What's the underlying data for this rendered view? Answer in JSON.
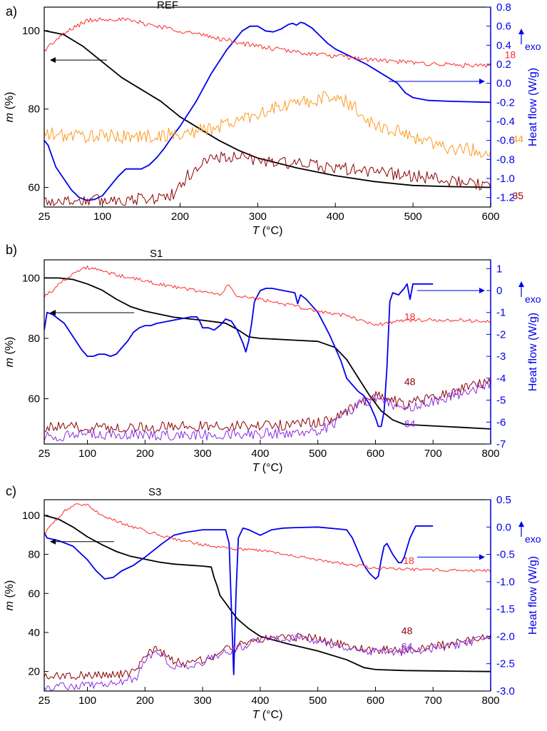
{
  "chart_data": [
    {
      "type": "line",
      "panel_letter": "a)",
      "title": "REF",
      "xlabel_var": "T",
      "xlabel_unit": " (°C)",
      "ylabel_left_var": "m",
      "ylabel_left_unit": " (%)",
      "ylabel_right": "Heat flow (W/g)",
      "exo_label": "exo",
      "xlim": [
        25,
        600
      ],
      "xticks": [
        25,
        100,
        200,
        300,
        400,
        500,
        600
      ],
      "ylim_left": [
        55,
        106
      ],
      "yticks_left": [
        60,
        80,
        100
      ],
      "ylim_right": [
        -1.3,
        0.8
      ],
      "yticks_right": [
        "-1.2",
        "-1.0",
        "-0.8",
        "-0.6",
        "-0.4",
        "-0.2",
        "0.0",
        "0.2",
        "0.4",
        "0.6",
        "0.8"
      ],
      "series": [
        {
          "name": "",
          "axis": "left",
          "color": "#000000",
          "x": [
            25,
            50,
            75,
            100,
            125,
            150,
            175,
            200,
            225,
            250,
            275,
            300,
            350,
            400,
            450,
            500,
            550,
            600
          ],
          "y": [
            100,
            99,
            96,
            92,
            88,
            85,
            82,
            78,
            75,
            72,
            69.5,
            67.5,
            65,
            63,
            61.5,
            60.5,
            60.2,
            60
          ]
        },
        {
          "name": "",
          "axis": "right",
          "color": "#0000ee",
          "x": [
            25,
            30,
            40,
            50,
            60,
            70,
            80,
            90,
            100,
            110,
            120,
            130,
            140,
            150,
            160,
            170,
            180,
            190,
            200,
            220,
            240,
            260,
            280,
            290,
            300,
            310,
            320,
            330,
            340,
            345,
            350,
            355,
            360,
            370,
            380,
            390,
            400,
            420,
            440,
            460,
            480,
            490,
            500,
            520,
            550,
            600
          ],
          "y": [
            -0.6,
            -0.65,
            -0.88,
            -1.0,
            -1.12,
            -1.2,
            -1.23,
            -1.22,
            -1.18,
            -1.08,
            -0.98,
            -0.9,
            -0.9,
            -0.9,
            -0.86,
            -0.78,
            -0.68,
            -0.56,
            -0.45,
            -0.2,
            0.1,
            0.35,
            0.55,
            0.6,
            0.6,
            0.55,
            0.54,
            0.57,
            0.62,
            0.63,
            0.61,
            0.64,
            0.63,
            0.58,
            0.5,
            0.42,
            0.36,
            0.28,
            0.2,
            0.1,
            0.0,
            -0.1,
            -0.15,
            -0.18,
            -0.19,
            -0.2
          ]
        },
        {
          "name": "18",
          "axis": "left",
          "color": "#ff2a2a",
          "noise": 0.6,
          "x": [
            25,
            40,
            60,
            80,
            100,
            120,
            150,
            200,
            250,
            300,
            350,
            400,
            450,
            500,
            550,
            600
          ],
          "y": [
            95,
            97.5,
            100.5,
            102.5,
            103,
            103,
            102,
            100,
            98,
            96,
            94.5,
            93.5,
            92.5,
            91.8,
            91.3,
            90.8
          ]
        },
        {
          "name": "44",
          "axis": "left",
          "color": "#ff9922",
          "noise": 1.8,
          "x": [
            25,
            100,
            150,
            200,
            250,
            300,
            350,
            380,
            400,
            420,
            450,
            500,
            550,
            600
          ],
          "y": [
            73.5,
            73,
            73,
            73.5,
            75.5,
            79,
            81.5,
            82.5,
            83.5,
            81,
            76,
            73,
            70,
            69
          ]
        },
        {
          "name": "35",
          "axis": "left",
          "color": "#8b0000",
          "noise": 1.6,
          "x": [
            25,
            100,
            150,
            180,
            195,
            210,
            230,
            250,
            280,
            300,
            350,
            400,
            450,
            500,
            550,
            600
          ],
          "y": [
            56.5,
            56.8,
            57,
            57.5,
            58.5,
            63,
            66.5,
            67.8,
            67.5,
            67,
            66,
            65,
            64,
            63,
            61.5,
            60.5
          ]
        }
      ],
      "annotations": {
        "label_18": "18",
        "label_44": "44",
        "label_35": "35"
      }
    },
    {
      "type": "line",
      "panel_letter": "b)",
      "title": "S1",
      "xlabel_var": "T",
      "xlabel_unit": " (°C)",
      "ylabel_left_var": "m",
      "ylabel_left_unit": " (%)",
      "ylabel_right": "Heat flow (W/g)",
      "exo_label": "exo",
      "xlim": [
        25,
        800
      ],
      "xticks": [
        25,
        100,
        200,
        300,
        400,
        500,
        600,
        700,
        800
      ],
      "ylim_left": [
        45,
        106
      ],
      "yticks_left": [
        60,
        80,
        100
      ],
      "ylim_right": [
        -7,
        1.4
      ],
      "yticks_right": [
        "-7",
        "-6",
        "-5",
        "-4",
        "-3",
        "-2",
        "-1",
        "0",
        "1"
      ],
      "series": [
        {
          "name": "",
          "axis": "left",
          "color": "#000000",
          "x": [
            25,
            50,
            75,
            100,
            125,
            150,
            175,
            200,
            250,
            300,
            340,
            360,
            380,
            400,
            450,
            500,
            530,
            550,
            570,
            590,
            610,
            630,
            650,
            700,
            750,
            800
          ],
          "y": [
            100,
            100,
            99.5,
            98,
            96,
            93,
            90.5,
            89,
            87,
            86,
            85,
            83,
            80.5,
            80,
            79.5,
            79,
            77,
            73,
            67,
            61,
            56,
            53,
            51.5,
            51,
            50.5,
            50
          ]
        },
        {
          "name": "",
          "axis": "right",
          "color": "#0000ee",
          "x": [
            25,
            30,
            40,
            50,
            60,
            70,
            80,
            90,
            100,
            110,
            120,
            130,
            140,
            150,
            160,
            170,
            180,
            190,
            200,
            210,
            220,
            240,
            260,
            280,
            290,
            295,
            300,
            310,
            320,
            330,
            340,
            350,
            360,
            370,
            375,
            380,
            385,
            390,
            400,
            410,
            420,
            440,
            460,
            465,
            470,
            475,
            480,
            500,
            520,
            540,
            550,
            560,
            570,
            580,
            590,
            600,
            605,
            610,
            615,
            620,
            625,
            630,
            640,
            650,
            655,
            660,
            665,
            700
          ],
          "y": [
            -1.8,
            -1.0,
            -1.1,
            -1.3,
            -1.5,
            -1.9,
            -2.3,
            -2.7,
            -3.0,
            -3.0,
            -2.9,
            -2.9,
            -3.0,
            -2.9,
            -2.6,
            -2.3,
            -1.9,
            -1.7,
            -1.6,
            -1.6,
            -1.5,
            -1.4,
            -1.3,
            -1.2,
            -1.2,
            -1.4,
            -1.7,
            -1.7,
            -1.8,
            -1.6,
            -1.3,
            -1.4,
            -1.8,
            -2.4,
            -2.8,
            -2.3,
            -1.5,
            -0.5,
            0.0,
            0.1,
            0.1,
            0.0,
            -0.1,
            -0.6,
            -0.2,
            -0.3,
            -0.4,
            -1.0,
            -2.0,
            -3.2,
            -4.0,
            -4.3,
            -4.6,
            -4.8,
            -5.2,
            -5.8,
            -6.2,
            -6.2,
            -5.5,
            -3.5,
            -0.5,
            -0.1,
            -0.2,
            0.1,
            0.3,
            -0.4,
            0.3,
            0.3
          ]
        },
        {
          "name": "18",
          "axis": "left",
          "color": "#ff2a2a",
          "noise": 0.6,
          "x": [
            25,
            40,
            60,
            80,
            100,
            120,
            150,
            200,
            250,
            300,
            330,
            345,
            360,
            380,
            400,
            450,
            500,
            550,
            600,
            620,
            650,
            700,
            750,
            800
          ],
          "y": [
            94,
            96,
            99.5,
            102,
            103.5,
            102.5,
            101,
            99,
            97,
            95.5,
            94.5,
            97.5,
            94,
            93.5,
            93,
            91,
            89,
            87.5,
            84.5,
            85,
            86,
            86,
            86,
            85.5
          ]
        },
        {
          "name": "48",
          "axis": "left",
          "color": "#8b0000",
          "noise": 1.8,
          "x": [
            25,
            100,
            200,
            300,
            400,
            450,
            500,
            520,
            550,
            580,
            600,
            620,
            650,
            700,
            750,
            800
          ],
          "y": [
            50.5,
            50.5,
            50.5,
            51,
            51,
            51.5,
            52,
            53,
            56,
            59,
            61,
            60,
            58,
            60.5,
            63,
            66
          ]
        },
        {
          "name": "64",
          "axis": "left",
          "color": "#8b2be2",
          "noise": 1.8,
          "x": [
            25,
            100,
            200,
            300,
            400,
            450,
            500,
            520,
            550,
            580,
            600,
            620,
            650,
            700,
            750,
            800
          ],
          "y": [
            47.5,
            48,
            48,
            48,
            48.5,
            48.5,
            49.5,
            51,
            55,
            59,
            60,
            59,
            56.5,
            59,
            62,
            65
          ]
        }
      ],
      "annotations": {
        "label_18": "18",
        "label_48": "48",
        "label_64": "64"
      }
    },
    {
      "type": "line",
      "panel_letter": "c)",
      "title": "S3",
      "xlabel_var": "T",
      "xlabel_unit": " (°C)",
      "ylabel_left_var": "m",
      "ylabel_left_unit": " (%)",
      "ylabel_right": "Heat flow (W/g)",
      "exo_label": "exo",
      "xlim": [
        25,
        800
      ],
      "xticks": [
        25,
        100,
        200,
        300,
        400,
        500,
        600,
        700,
        800
      ],
      "ylim_left": [
        10,
        108
      ],
      "yticks_left": [
        20,
        40,
        60,
        80,
        100
      ],
      "ylim_right": [
        -3.0,
        0.5
      ],
      "yticks_right": [
        "-3.0",
        "-2.5",
        "-2.0",
        "-1.5",
        "-1.0",
        "-0.5",
        "0.0",
        "0.5"
      ],
      "series": [
        {
          "name": "",
          "axis": "left",
          "color": "#000000",
          "x": [
            25,
            50,
            75,
            100,
            125,
            150,
            175,
            200,
            225,
            250,
            300,
            315,
            320,
            325,
            330,
            340,
            350,
            360,
            380,
            400,
            450,
            500,
            550,
            580,
            600,
            650,
            700,
            800
          ],
          "y": [
            100,
            98,
            94,
            89,
            85,
            81.5,
            79,
            77.5,
            76,
            75,
            74,
            73.5,
            68,
            64,
            59,
            55,
            51,
            47,
            42,
            38,
            34,
            30.5,
            26,
            22,
            21,
            20.5,
            20.3,
            20
          ]
        },
        {
          "name": "",
          "axis": "right",
          "color": "#0000ee",
          "x": [
            25,
            30,
            50,
            75,
            100,
            115,
            130,
            145,
            160,
            180,
            200,
            230,
            250,
            270,
            300,
            320,
            340,
            346,
            350,
            354,
            358,
            362,
            370,
            380,
            390,
            400,
            410,
            420,
            440,
            460,
            500,
            550,
            560,
            570,
            580,
            590,
            600,
            605,
            610,
            615,
            620,
            630,
            640,
            645,
            650,
            660,
            670,
            700
          ],
          "y": [
            -0.1,
            -0.2,
            -0.25,
            -0.35,
            -0.6,
            -0.8,
            -0.95,
            -0.92,
            -0.8,
            -0.7,
            -0.55,
            -0.3,
            -0.15,
            -0.1,
            -0.05,
            -0.05,
            -0.05,
            -0.3,
            -1.5,
            -2.7,
            -1.2,
            -0.2,
            -0.02,
            -0.05,
            -0.1,
            -0.15,
            -0.1,
            -0.05,
            -0.02,
            -0.01,
            0.0,
            -0.05,
            -0.2,
            -0.45,
            -0.7,
            -0.85,
            -0.95,
            -0.9,
            -0.6,
            -0.35,
            -0.3,
            -0.5,
            -0.65,
            -0.65,
            -0.55,
            -0.2,
            0.02,
            0.02
          ]
        },
        {
          "name": "18",
          "axis": "left",
          "color": "#ff2a2a",
          "noise": 0.8,
          "x": [
            25,
            40,
            60,
            80,
            100,
            120,
            150,
            200,
            250,
            300,
            350,
            400,
            450,
            500,
            550,
            600,
            650,
            700,
            750,
            800
          ],
          "y": [
            90,
            96,
            102,
            106,
            105,
            101,
            97,
            92,
            88,
            85,
            83,
            82,
            80,
            77,
            75,
            73,
            72.5,
            72,
            72,
            71.5
          ]
        },
        {
          "name": "48",
          "axis": "left",
          "color": "#8b0000",
          "noise": 2.2,
          "x": [
            25,
            100,
            160,
            185,
            200,
            220,
            240,
            250,
            270,
            300,
            330,
            360,
            400,
            450,
            500,
            540,
            600,
            650,
            700,
            750,
            800
          ],
          "y": [
            17.5,
            18,
            18.5,
            20,
            28,
            32,
            27,
            25,
            24,
            26,
            30,
            33,
            37,
            38,
            37,
            34,
            31,
            31,
            33,
            35,
            38
          ]
        },
        {
          "name": "64",
          "axis": "left",
          "color": "#8b2be2",
          "noise": 2.2,
          "x": [
            25,
            100,
            160,
            185,
            200,
            220,
            240,
            250,
            270,
            300,
            330,
            360,
            400,
            450,
            500,
            540,
            600,
            650,
            700,
            750,
            800
          ],
          "y": [
            12,
            13,
            14,
            17,
            26,
            30,
            25,
            23,
            23,
            25,
            29,
            32,
            36,
            37,
            36,
            32,
            30,
            30,
            32,
            34,
            37
          ]
        }
      ],
      "annotations": {
        "label_18": "18",
        "label_48": "48",
        "label_64": "64"
      }
    }
  ]
}
